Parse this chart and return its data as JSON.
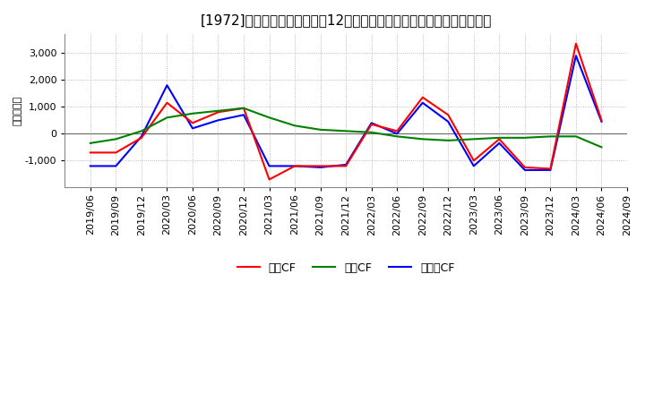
{
  "title": "[1972]　キャッシュフローの12か月移動合計の対前年同期増減額の推移",
  "ylabel": "（百万円）",
  "background_color": "#ffffff",
  "plot_bg_color": "#ffffff",
  "grid_color": "#aaaaaa",
  "x_labels": [
    "2019/06",
    "2019/09",
    "2019/12",
    "2020/03",
    "2020/06",
    "2020/09",
    "2020/12",
    "2021/03",
    "2021/06",
    "2021/09",
    "2021/12",
    "2022/03",
    "2022/06",
    "2022/09",
    "2022/12",
    "2023/03",
    "2023/06",
    "2023/09",
    "2023/12",
    "2024/03",
    "2024/06",
    "2024/09"
  ],
  "operating_cf": [
    -700,
    -700,
    -150,
    1150,
    400,
    800,
    950,
    -1700,
    -1200,
    -1200,
    -1200,
    350,
    100,
    1350,
    700,
    -1000,
    -200,
    -1250,
    -1300,
    3350,
    500,
    null
  ],
  "investing_cf": [
    -350,
    -200,
    100,
    600,
    750,
    850,
    950,
    600,
    300,
    150,
    100,
    50,
    -100,
    -200,
    -250,
    -200,
    -150,
    -150,
    -100,
    -100,
    -500,
    null
  ],
  "free_cf": [
    -1200,
    -1200,
    -100,
    1800,
    200,
    500,
    700,
    -1200,
    -1200,
    -1250,
    -1150,
    400,
    0,
    1150,
    450,
    -1200,
    -350,
    -1350,
    -1350,
    2900,
    450,
    null
  ],
  "line_colors": {
    "operating": "#ff0000",
    "investing": "#008000",
    "free": "#0000ff"
  },
  "legend_labels": {
    "operating": "営業CF",
    "investing": "投資CF",
    "free": "フリーCF"
  },
  "ylim": [
    -2000,
    3700
  ],
  "yticks": [
    -1000,
    0,
    1000,
    2000,
    3000
  ],
  "title_fontsize": 11,
  "axis_fontsize": 8,
  "legend_fontsize": 9
}
